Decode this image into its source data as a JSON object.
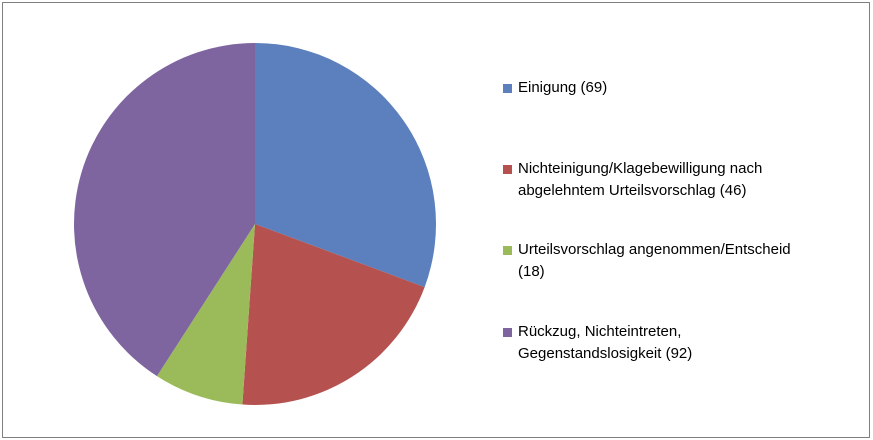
{
  "chart_data": {
    "type": "pie",
    "categories": [
      "Einigung (69)",
      "Nichteinigung/Klagebewilligung nach abgelehntem Urteilsvorschlag (46)",
      "Urteilsvorschlag angenommen/Entscheid (18)",
      "Rückzug, Nichteintreten, Gegenstandslosigkeit (92)"
    ],
    "values": [
      69,
      46,
      18,
      92
    ],
    "colors": [
      "#5b80bd",
      "#b5524f",
      "#9bbb5b",
      "#7e65a0"
    ],
    "legend": "right"
  }
}
